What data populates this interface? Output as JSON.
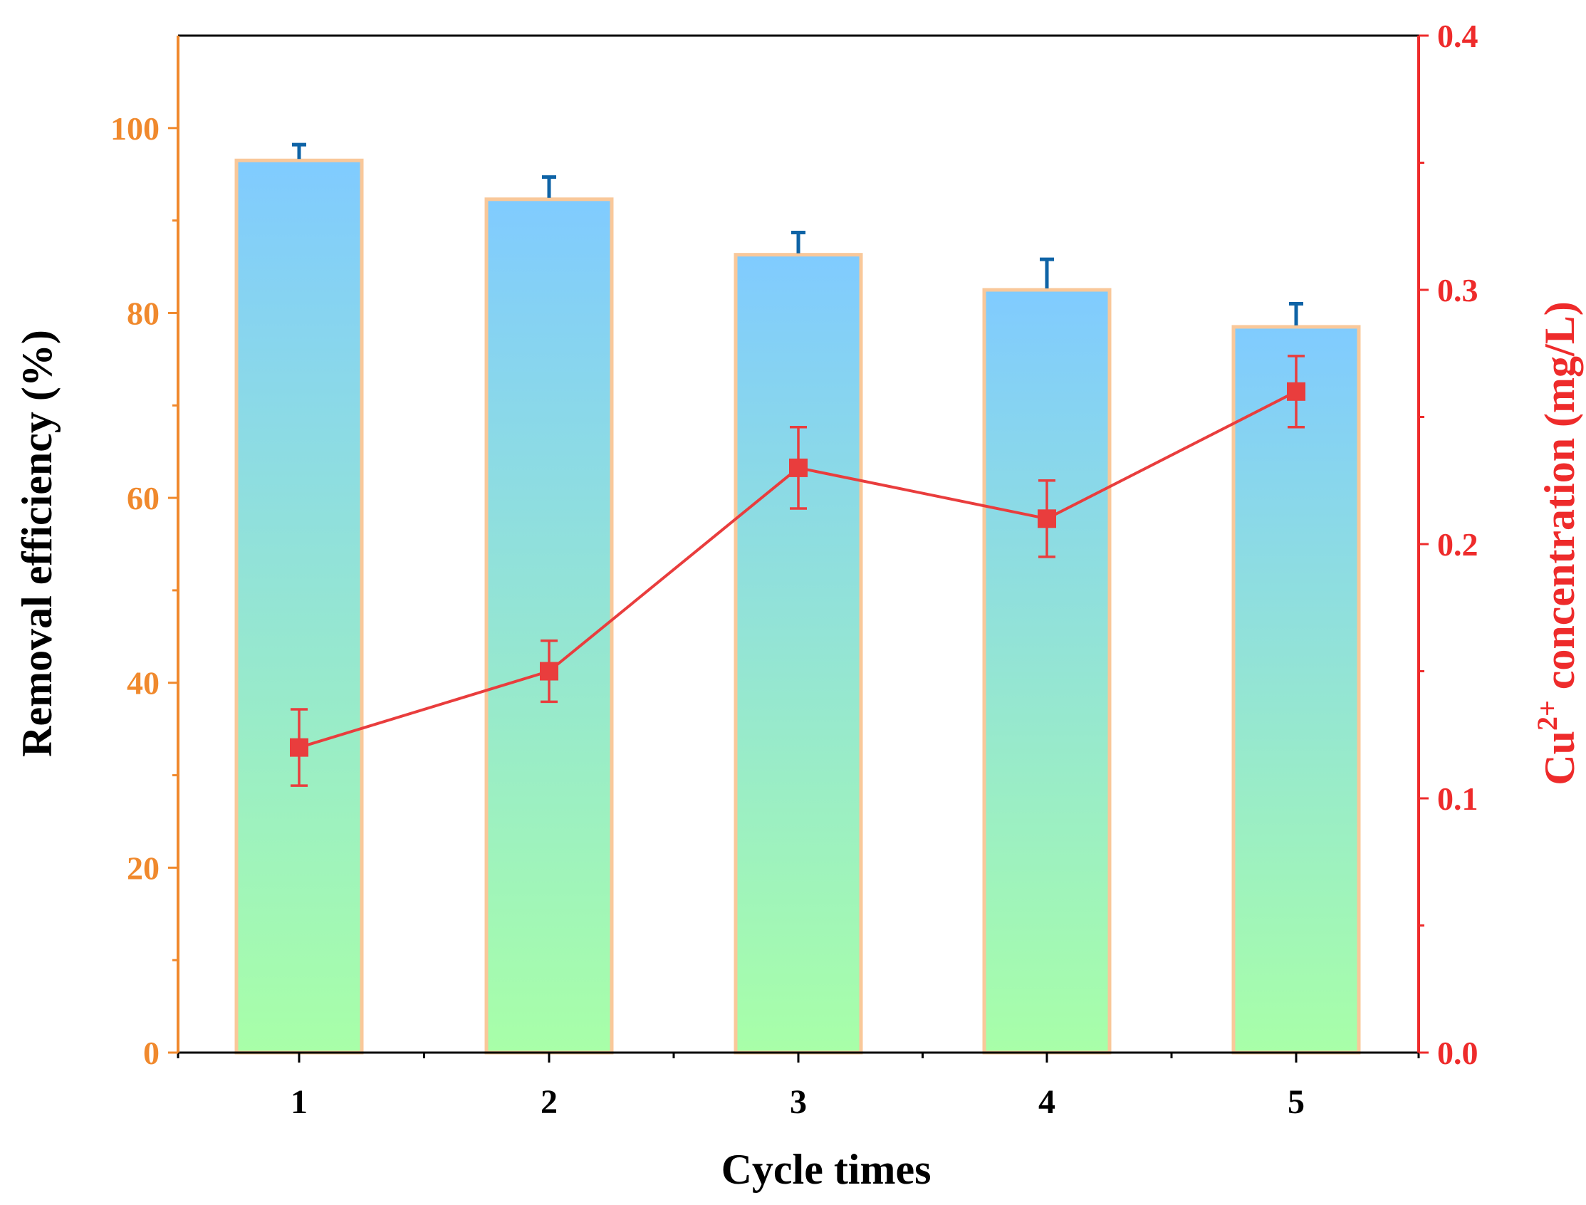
{
  "chart_data": {
    "type": "bar+line",
    "categories": [
      "1",
      "2",
      "3",
      "4",
      "5"
    ],
    "xlabel": "Cycle times",
    "ylabel_left": "Removal efficiency (%)",
    "ylabel_right": {
      "prefix": "Cu",
      "sup": "2+",
      "suffix": " concentration (mg/L)"
    },
    "ylim_left": [
      0,
      110
    ],
    "ylim_right": [
      0,
      0.4
    ],
    "left_ticks": [
      "0",
      "20",
      "40",
      "60",
      "80",
      "100"
    ],
    "right_ticks": [
      "0.0",
      "0.1",
      "0.2",
      "0.3",
      "0.4"
    ],
    "series": [
      {
        "name": "Removal efficiency",
        "axis": "left",
        "kind": "bar",
        "values": [
          96.5,
          92.3,
          86.3,
          82.5,
          78.5
        ],
        "errors": [
          1.7,
          2.4,
          2.4,
          3.3,
          2.5
        ]
      },
      {
        "name": "Cu2+ concentration",
        "axis": "right",
        "kind": "line",
        "values": [
          0.12,
          0.15,
          0.23,
          0.21,
          0.26
        ],
        "errors": [
          0.015,
          0.012,
          0.016,
          0.015,
          0.014
        ]
      }
    ],
    "colors": {
      "left_axis": "#f0892d",
      "right_axis": "#ee2b2b",
      "bar_top": "#80cbff",
      "bar_bottom": "#a8ffa8",
      "bar_border": "#f9c89a",
      "bar_error": "#0e63a6",
      "line": "#e93d3d",
      "marker": "#e93d3d",
      "axis_black": "#000000"
    }
  }
}
